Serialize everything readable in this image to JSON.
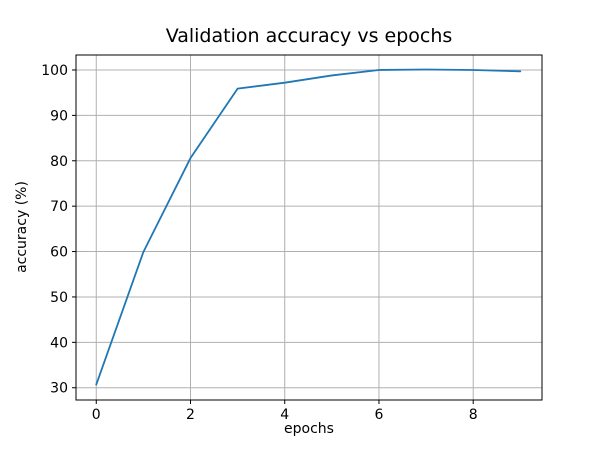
{
  "figure": {
    "background": "#ffffff"
  },
  "chart_data": {
    "type": "line",
    "title": "Validation accuracy vs epochs",
    "xlabel": "epochs",
    "ylabel": "accuracy (%)",
    "x": [
      0,
      1,
      2,
      3,
      4,
      5,
      6,
      7,
      8,
      9
    ],
    "series": [
      {
        "name": "validation accuracy",
        "values": [
          30.7,
          59.9,
          80.6,
          95.9,
          97.2,
          98.8,
          100.0,
          100.1,
          100.0,
          99.7
        ]
      }
    ],
    "xticks": [
      0,
      2,
      4,
      6,
      8
    ],
    "yticks": [
      30,
      40,
      50,
      60,
      70,
      80,
      90,
      100
    ],
    "xlim": [
      -0.43,
      9.46
    ],
    "ylim": [
      27.3,
      103.3
    ],
    "grid": true,
    "legend": "none",
    "line_color": "#1f77b4",
    "grid_color": "#b0b0b0",
    "axis_color": "#000000",
    "tick_label_fontsize": 14,
    "title_fontsize": 19
  }
}
